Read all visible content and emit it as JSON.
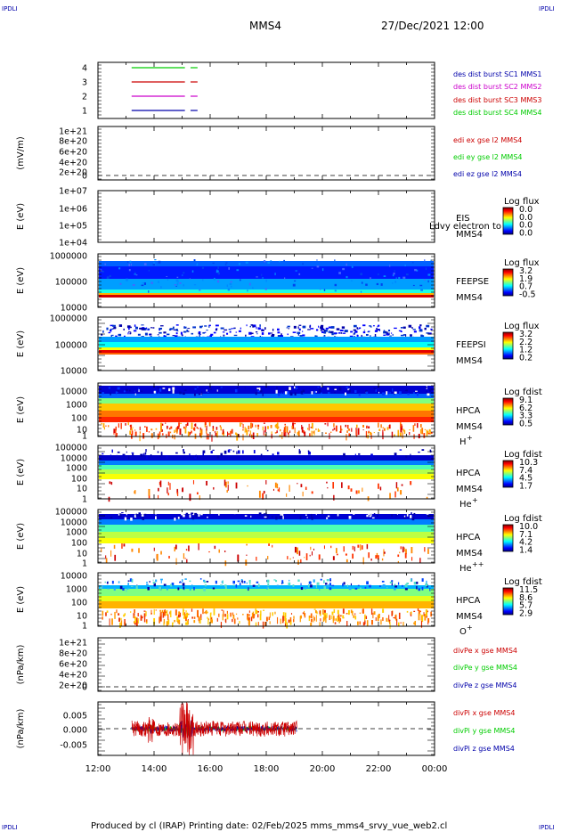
{
  "corner_label": "IPDLI",
  "header": {
    "spacecraft": "MMS4",
    "datetime": "27/Dec/2021 12:00"
  },
  "footer": {
    "text": "Produced by cl (IRAP)   Printing date: 02/Feb/2025   mms_mms4_srvy_vue_web2.cl"
  },
  "colors": {
    "dark_blue": "#0000aa",
    "magenta": "#cc00cc",
    "red": "#cc0000",
    "green": "#00cc00"
  },
  "x_axis": {
    "ticks": [
      "12:00",
      "14:00",
      "16:00",
      "18:00",
      "20:00",
      "22:00",
      "00:00"
    ],
    "range_hours": [
      12,
      24
    ]
  },
  "chart_data": [
    {
      "type": "line",
      "panel": "burst",
      "yticks": [
        "4",
        "3",
        "2",
        "1"
      ],
      "legend": [
        {
          "label": "des dist burst SC1 MMS1",
          "color": "#0000aa"
        },
        {
          "label": "des dist burst SC2 MMS2",
          "color": "#cc00cc"
        },
        {
          "label": "des dist burst SC3 MMS3",
          "color": "#cc0000"
        },
        {
          "label": "des dist burst SC4 MMS4",
          "color": "#00cc00"
        }
      ],
      "series": [
        {
          "level": 4,
          "color": "#00cc00",
          "segments": [
            [
              13.2,
              15.1
            ],
            [
              15.3,
              15.55
            ]
          ]
        },
        {
          "level": 3,
          "color": "#cc0000",
          "segments": [
            [
              13.2,
              15.1
            ],
            [
              15.3,
              15.55
            ]
          ]
        },
        {
          "level": 2,
          "color": "#cc00cc",
          "segments": [
            [
              13.2,
              15.1
            ],
            [
              15.3,
              15.55
            ]
          ]
        },
        {
          "level": 1,
          "color": "#0000aa",
          "segments": [
            [
              13.2,
              15.1
            ],
            [
              15.3,
              15.55
            ]
          ]
        }
      ]
    },
    {
      "type": "line",
      "panel": "edi",
      "ylabel": "(mV/m)",
      "yticks": [
        "1e+21",
        "8e+20",
        "6e+20",
        "4e+20",
        "2e+20",
        "0"
      ],
      "legend": [
        {
          "label": "edi ex gse l2 MMS4",
          "color": "#cc0000"
        },
        {
          "label": "edi ey gse l2 MMS4",
          "color": "#00cc00"
        },
        {
          "label": "edi ez gse l2 MMS4",
          "color": "#0000aa"
        }
      ]
    },
    {
      "type": "heatmap",
      "panel": "eis",
      "ylabel": "E (eV)",
      "yticks": [
        "1e+07",
        "1e+06",
        "1e+05",
        "1e+04"
      ],
      "instrument": "EIS",
      "spacecraft": "MMS4",
      "overlay_text": "Ldvy electron to",
      "colorbar_title": "Log flux",
      "colorbar_ticks": [
        "0.0",
        "0.0",
        "0.0",
        "0.0"
      ]
    },
    {
      "type": "heatmap",
      "panel": "feepse",
      "ylabel": "E (eV)",
      "yticks": [
        "1000000",
        "100000",
        "10000"
      ],
      "instrument": "FEEPSE",
      "spacecraft": "MMS4",
      "colorbar_title": "Log flux",
      "colorbar_ticks": [
        "3.2",
        "1.9",
        "0.7",
        "-0.5"
      ]
    },
    {
      "type": "heatmap",
      "panel": "feepsi",
      "ylabel": "E (eV)",
      "yticks": [
        "1000000",
        "100000",
        "10000"
      ],
      "instrument": "FEEPSI",
      "spacecraft": "MMS4",
      "colorbar_title": "Log flux",
      "colorbar_ticks": [
        "3.2",
        "2.2",
        "1.2",
        "0.2"
      ]
    },
    {
      "type": "heatmap",
      "panel": "hpca_h",
      "ylabel": "E (eV)",
      "yticks": [
        "10000",
        "1000",
        "100",
        "10",
        "1"
      ],
      "instrument": "HPCA",
      "spacecraft": "MMS4",
      "species": "H",
      "species_charge": "+",
      "colorbar_title": "Log fdist",
      "colorbar_ticks": [
        "9.1",
        "6.2",
        "3.3",
        "0.5"
      ]
    },
    {
      "type": "heatmap",
      "panel": "hpca_he",
      "ylabel": "E (eV)",
      "yticks": [
        "100000",
        "10000",
        "1000",
        "100",
        "10",
        "1"
      ],
      "instrument": "HPCA",
      "spacecraft": "MMS4",
      "species": "He",
      "species_charge": "+",
      "colorbar_title": "Log fdist",
      "colorbar_ticks": [
        "10.3",
        "7.4",
        "4.5",
        "1.7"
      ]
    },
    {
      "type": "heatmap",
      "panel": "hpca_hepp",
      "ylabel": "E (eV)",
      "yticks": [
        "100000",
        "10000",
        "1000",
        "100",
        "10",
        "1"
      ],
      "instrument": "HPCA",
      "spacecraft": "MMS4",
      "species": "He",
      "species_charge": "++",
      "colorbar_title": "Log fdist",
      "colorbar_ticks": [
        "10.0",
        "7.1",
        "4.2",
        "1.4"
      ]
    },
    {
      "type": "heatmap",
      "panel": "hpca_o",
      "ylabel": "E (eV)",
      "yticks": [
        "10000",
        "1000",
        "100",
        "10",
        "1"
      ],
      "instrument": "HPCA",
      "spacecraft": "MMS4",
      "species": "O",
      "species_charge": "+",
      "colorbar_title": "Log fdist",
      "colorbar_ticks": [
        "11.5",
        "8.6",
        "5.7",
        "2.9"
      ]
    },
    {
      "type": "line",
      "panel": "divpe",
      "ylabel": "(nPa/km)",
      "yticks": [
        "1e+21",
        "8e+20",
        "6e+20",
        "4e+20",
        "2e+20",
        "0"
      ],
      "legend": [
        {
          "label": "divPe x gse MMS4",
          "color": "#cc0000"
        },
        {
          "label": "divPe y gse MMS4",
          "color": "#00cc00"
        },
        {
          "label": "divPe z gse MMS4",
          "color": "#0000aa"
        }
      ]
    },
    {
      "type": "line",
      "panel": "divpi",
      "ylabel": "(nPa/km)",
      "yticks": [
        "0.005",
        "0.000",
        "-0.005"
      ],
      "ylim": [
        -0.0085,
        0.0085
      ],
      "x_data_range": [
        13.2,
        19.1
      ],
      "legend": [
        {
          "label": "divPi x gse MMS4",
          "color": "#cc0000"
        },
        {
          "label": "divPi y gse MMS4",
          "color": "#00cc00"
        },
        {
          "label": "divPi z gse MMS4",
          "color": "#0000aa"
        }
      ]
    }
  ]
}
